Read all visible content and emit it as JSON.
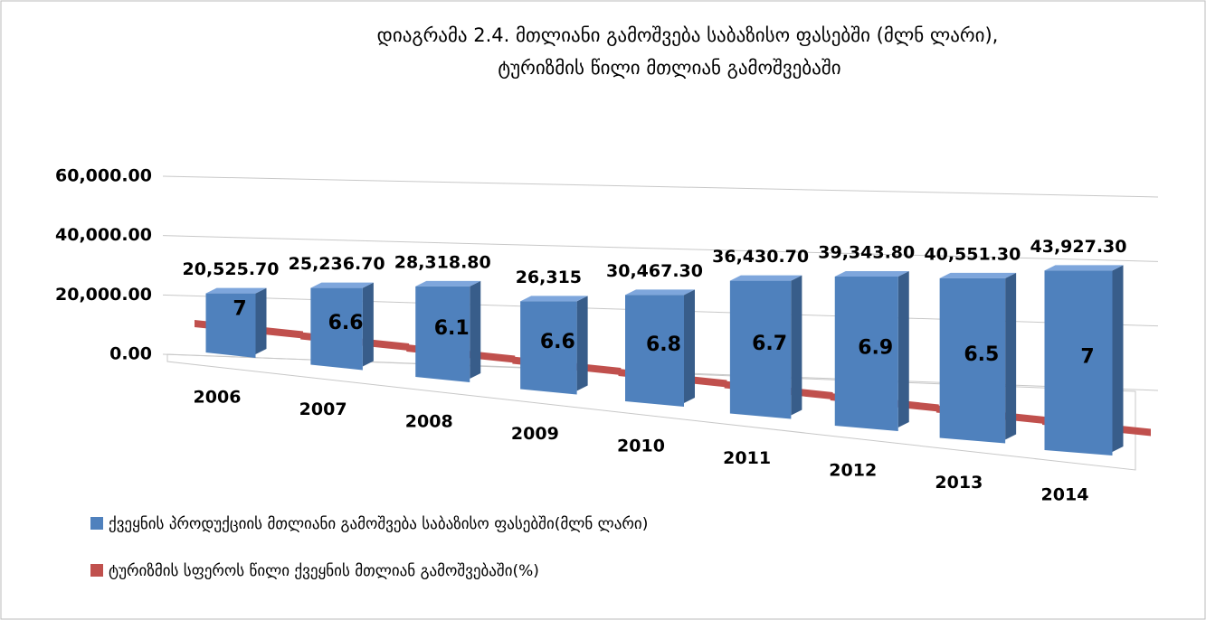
{
  "chart_data": {
    "type": "bar3d",
    "title": "დიაგრამა 2.4. მთლიანი  გამოშვება  საბაზისო  ფასებში (მლნ ლარი),",
    "subtitle": "ტურიზმის წილი მთლიან გამოშვებაში",
    "categories": [
      "2006",
      "2007",
      "2008",
      "2009",
      "2010",
      "2011",
      "2012",
      "2013",
      "2014"
    ],
    "series": [
      {
        "name": "ქვეყნის პროდუქციის მთლიანი გამოშვება საბაზისო ფასებში(მლნ ლარი)",
        "color": "#4f81bd",
        "values": [
          20525.7,
          25236.7,
          28318.8,
          26315,
          30467.3,
          36430.7,
          39343.8,
          40551.3,
          43927.3
        ],
        "value_labels": [
          "20,525.70",
          "25,236.70",
          "28,318.80",
          "26,315",
          "30,467.30",
          "36,430.70",
          "39,343.80",
          "40,551.30",
          "43,927.30"
        ]
      },
      {
        "name": "ტურიზმის სფეროს წილი ქვეყნის მთლიან გამოშვებაში(%)",
        "color": "#c0504d",
        "values": [
          7,
          6.6,
          6.1,
          6.6,
          6.8,
          6.7,
          6.9,
          6.5,
          7
        ]
      }
    ],
    "ylim": [
      0,
      60000
    ],
    "yticks": [
      {
        "value": 0,
        "label": "0.00"
      },
      {
        "value": 20000,
        "label": "20,000.00"
      },
      {
        "value": 40000,
        "label": "40,000.00"
      },
      {
        "value": 60000,
        "label": "60,000.00"
      }
    ],
    "grid": true
  }
}
